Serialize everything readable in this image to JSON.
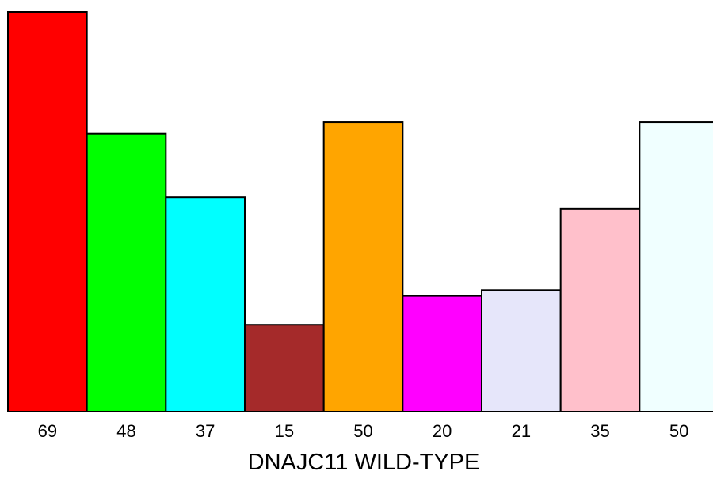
{
  "chart_data": {
    "type": "bar",
    "categories": [
      "69",
      "48",
      "37",
      "15",
      "50",
      "20",
      "21",
      "35",
      "50"
    ],
    "values": [
      69,
      48,
      37,
      15,
      50,
      20,
      21,
      35,
      50
    ],
    "colors": [
      "#ff0000",
      "#00ff00",
      "#00ffff",
      "#a52a2a",
      "#ffa500",
      "#ff00ff",
      "#e6e6fa",
      "#ffc0cb",
      "#f0ffff"
    ],
    "title": "",
    "xlabel": "DNAJC11 WILD-TYPE",
    "ylabel": "",
    "ylim": [
      0,
      69
    ],
    "grid": false,
    "legend": "none"
  }
}
